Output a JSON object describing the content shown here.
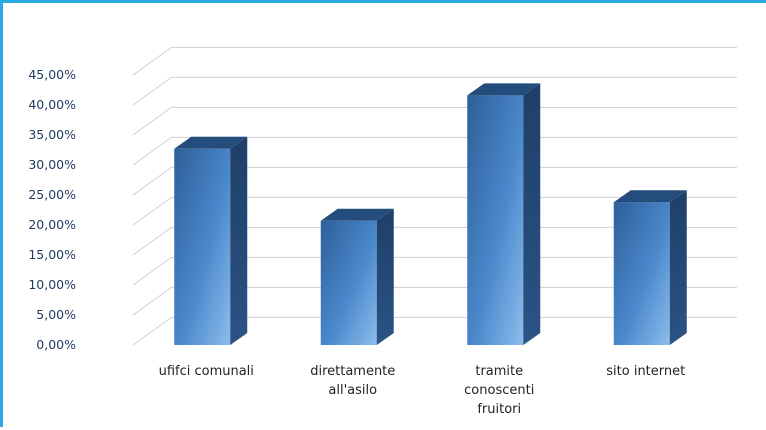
{
  "chart_data": {
    "type": "bar",
    "categories": [
      [
        "ufifci comunali"
      ],
      [
        "direttamente",
        "all'asilo"
      ],
      [
        "tramite",
        "conoscenti",
        "fruitori"
      ],
      [
        "sito internet"
      ]
    ],
    "values": [
      32.7,
      20.7,
      41.6,
      23.8
    ],
    "ylim": [
      0,
      45
    ],
    "ytick_labels": [
      "0,00%",
      "5,00%",
      "10,00%",
      "15,00%",
      "20,00%",
      "25,00%",
      "30,00%",
      "35,00%",
      "40,00%",
      "45,00%"
    ],
    "grid": true,
    "legend": "none",
    "bar_color": "#3B7CC0"
  }
}
